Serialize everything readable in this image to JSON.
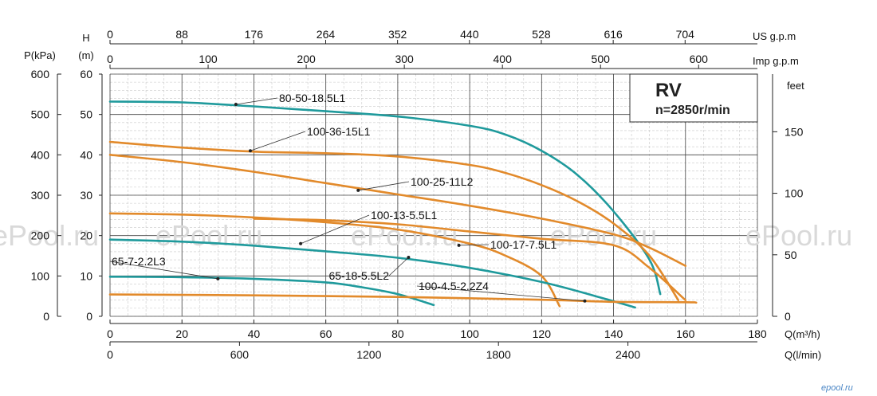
{
  "chart_data": {
    "type": "line",
    "title": "RV",
    "subtitle": "n=2850r/min",
    "x": {
      "label": "Q(m³/h)",
      "ticks": [
        0,
        20,
        40,
        60,
        80,
        100,
        120,
        140,
        160,
        180
      ],
      "range": [
        0,
        180
      ]
    },
    "x_secondary": {
      "label": "Q(l/min)",
      "ticks": [
        0,
        600,
        1200,
        1800,
        2400
      ]
    },
    "x_top1": {
      "label": "US g.p.m",
      "ticks": [
        0,
        88,
        176,
        264,
        352,
        440,
        528,
        616,
        704
      ]
    },
    "x_top2": {
      "label": "Imp g.p.m",
      "ticks": [
        0,
        100,
        200,
        300,
        400,
        500,
        600
      ]
    },
    "y": {
      "label": "H",
      "unit": "(m)",
      "ticks": [
        0,
        10,
        20,
        30,
        40,
        50,
        60
      ],
      "range": [
        0,
        60
      ]
    },
    "y_pressure": {
      "label": "P(kPa)",
      "ticks": [
        0,
        100,
        200,
        300,
        400,
        500,
        600
      ]
    },
    "y_feet": {
      "label": "feet",
      "ticks": [
        0,
        50,
        100,
        150
      ]
    },
    "grid": true,
    "series": [
      {
        "name": "80-50-18.5L1",
        "color": "#1f9a9c",
        "points": [
          [
            0,
            53.2
          ],
          [
            20,
            53.0
          ],
          [
            40,
            52.0
          ],
          [
            60,
            50.8
          ],
          [
            80,
            49.5
          ],
          [
            100,
            47.2
          ],
          [
            110,
            45
          ],
          [
            120,
            41
          ],
          [
            130,
            35
          ],
          [
            140,
            26
          ],
          [
            150,
            14
          ],
          [
            153,
            5.5
          ]
        ]
      },
      {
        "name": "100-36-15L1",
        "color": "#e28a2b",
        "points": [
          [
            0,
            43.2
          ],
          [
            20,
            41.8
          ],
          [
            40,
            40.8
          ],
          [
            60,
            40.4
          ],
          [
            80,
            39.6
          ],
          [
            100,
            37.5
          ],
          [
            110,
            35.5
          ],
          [
            120,
            32.5
          ],
          [
            130,
            28.5
          ],
          [
            140,
            23
          ],
          [
            150,
            15
          ],
          [
            158,
            4
          ]
        ]
      },
      {
        "name": "100-25-11L2",
        "color": "#e28a2b",
        "points": [
          [
            0,
            40
          ],
          [
            20,
            38.2
          ],
          [
            40,
            35.8
          ],
          [
            60,
            33
          ],
          [
            80,
            30.2
          ],
          [
            100,
            27.4
          ],
          [
            120,
            24.2
          ],
          [
            140,
            20.3
          ],
          [
            150,
            17
          ],
          [
            160,
            12.5
          ]
        ]
      },
      {
        "name": "100-13-5.5L1",
        "color": "#e28a2b",
        "points": [
          [
            0,
            25.5
          ],
          [
            20,
            25.2
          ],
          [
            40,
            24.5
          ],
          [
            60,
            23.3
          ],
          [
            80,
            21.5
          ],
          [
            100,
            18
          ],
          [
            110,
            15
          ],
          [
            120,
            10
          ],
          [
            125,
            2.5
          ]
        ]
      },
      {
        "name": "100-17-7.5L1",
        "color": "#e28a2b",
        "points": [
          [
            40,
            24.2
          ],
          [
            60,
            23.8
          ],
          [
            80,
            22.8
          ],
          [
            100,
            21
          ],
          [
            120,
            19.2
          ],
          [
            140,
            17.6
          ],
          [
            150,
            12
          ],
          [
            160,
            4
          ]
        ]
      },
      {
        "name": "65-18-5.5L2",
        "color": "#1f9a9c",
        "points": [
          [
            0,
            19
          ],
          [
            20,
            18.5
          ],
          [
            40,
            17.5
          ],
          [
            60,
            16.1
          ],
          [
            80,
            14.5
          ],
          [
            100,
            12
          ],
          [
            120,
            8.5
          ],
          [
            135,
            5
          ],
          [
            146,
            2.2
          ]
        ]
      },
      {
        "name": "65-7-2.2L3",
        "color": "#1f9a9c",
        "points": [
          [
            0,
            9.8
          ],
          [
            20,
            9.7
          ],
          [
            40,
            9.3
          ],
          [
            60,
            8.4
          ],
          [
            70,
            7.2
          ],
          [
            80,
            5.5
          ],
          [
            90,
            2.8
          ]
        ]
      },
      {
        "name": "100-4.5-2.2Z4",
        "color": "#e28a2b",
        "points": [
          [
            0,
            5.4
          ],
          [
            40,
            5.2
          ],
          [
            80,
            4.8
          ],
          [
            120,
            4.1
          ],
          [
            140,
            3.6
          ],
          [
            160,
            3.5
          ],
          [
            163,
            3.4
          ]
        ]
      }
    ],
    "annotations": [
      {
        "text": "80-50-18.5L1",
        "at": [
          35,
          52.5
        ]
      },
      {
        "text": "100-36-15L1",
        "at": [
          39,
          41
        ]
      },
      {
        "text": "100-25-11L2",
        "at": [
          69,
          31.2
        ]
      },
      {
        "text": "100-13-5.5L1",
        "at": [
          53,
          18
        ]
      },
      {
        "text": "100-17-7.5L1",
        "at": [
          97,
          17.6
        ]
      },
      {
        "text": "65-18-5.5L2",
        "at": [
          83,
          14.6
        ]
      },
      {
        "text": "65-7-2.2L3",
        "at": [
          30,
          9.3
        ]
      },
      {
        "text": "100-4.5-2.2Z4",
        "at": [
          132,
          3.8
        ]
      }
    ],
    "watermark": "ePool.ru",
    "logo": "epool.ru"
  }
}
